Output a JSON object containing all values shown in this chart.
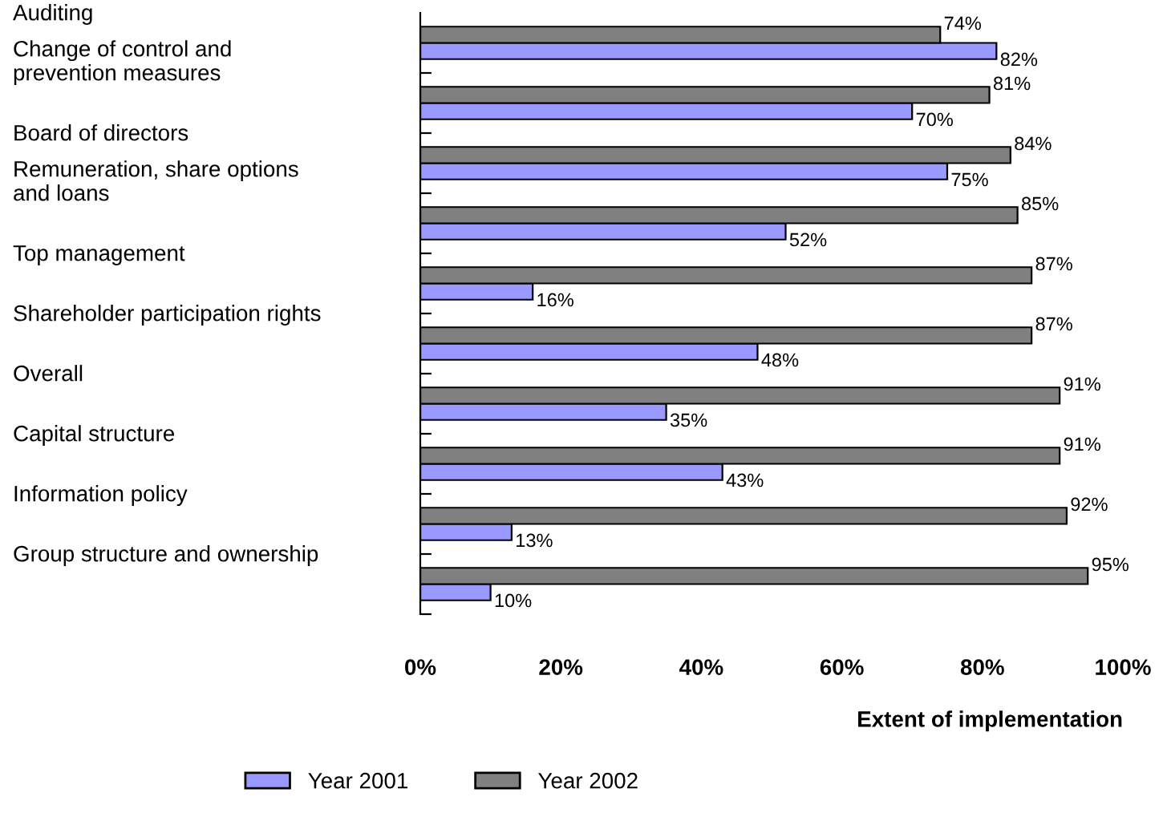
{
  "chart_data": {
    "type": "bar",
    "orientation": "horizontal",
    "xlabel": "Extent of implementation",
    "categories": [
      "Auditing",
      "Change of control and\nprevention measures",
      "Board of directors",
      "Remuneration, share options\nand loans",
      "Top management",
      "Shareholder participation rights",
      "Overall",
      "Capital structure",
      "Information policy",
      "Group structure and ownership"
    ],
    "series": [
      {
        "name": "Year 2001",
        "color": "#9999ff",
        "values": [
          82,
          70,
          75,
          52,
          16,
          48,
          35,
          43,
          13,
          10
        ],
        "value_labels": [
          "82%",
          "70%",
          "75%",
          "52%",
          "16%",
          "48%",
          "35%",
          "43%",
          "13%",
          "10%"
        ]
      },
      {
        "name": "Year 2002",
        "color": "#808080",
        "values": [
          74,
          81,
          84,
          85,
          87,
          87,
          91,
          91,
          92,
          95
        ],
        "value_labels": [
          "74%",
          "81%",
          "84%",
          "85%",
          "87%",
          "87%",
          "91%",
          "91%",
          "92%",
          "95%"
        ]
      }
    ],
    "xlim": [
      0,
      100
    ],
    "xticks": [
      {
        "value": 0,
        "label": "0%"
      },
      {
        "value": 20,
        "label": "20%"
      },
      {
        "value": 40,
        "label": "40%"
      },
      {
        "value": 60,
        "label": "60%"
      },
      {
        "value": 80,
        "label": "80%"
      },
      {
        "value": 100,
        "label": "100%"
      }
    ],
    "legend": "bottom",
    "grid": false
  }
}
